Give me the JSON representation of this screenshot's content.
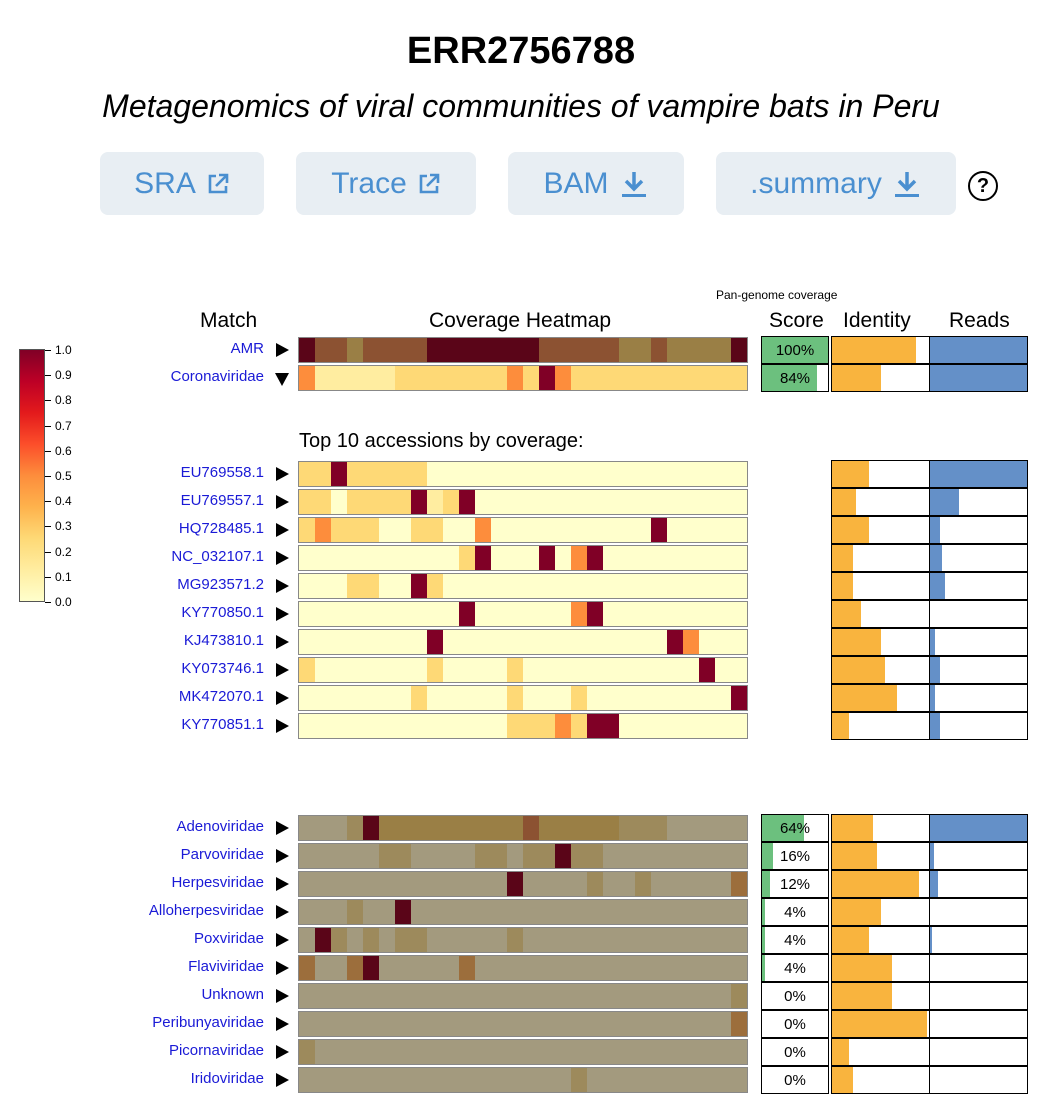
{
  "header": {
    "title": "ERR2756788",
    "subtitle": "Metagenomics of viral communities of vampire bats in Peru"
  },
  "buttons": [
    {
      "label": "SRA",
      "icon": "external-link-icon"
    },
    {
      "label": "Trace",
      "icon": "external-link-icon"
    },
    {
      "label": "BAM",
      "icon": "download-icon"
    },
    {
      "label": ".summary",
      "icon": "download-icon"
    }
  ],
  "help_icon": "?",
  "columns": {
    "match": "Match",
    "coverage_heatmap": "Coverage Heatmap",
    "pan_genome": "Pan-genome coverage",
    "score": "Score",
    "identity": "Identity",
    "reads": "Reads"
  },
  "colorbar": {
    "ticks": [
      "1.0",
      "0.9",
      "0.8",
      "0.7",
      "0.6",
      "0.5",
      "0.4",
      "0.3",
      "0.2",
      "0.1",
      "0.0"
    ],
    "colors": [
      "#800026",
      "#bd0026",
      "#e31a1c",
      "#fc4e2a",
      "#fd8d3c",
      "#feb24c",
      "#fed976",
      "#ffeda0",
      "#ffffcc"
    ]
  },
  "top10_label": "Top 10 accessions by coverage:",
  "colors": {
    "ramp": [
      "#ffffcc",
      "#ffeda0",
      "#fed976",
      "#feb24c",
      "#fd8d3c",
      "#fc4e2a",
      "#e31a1c",
      "#bd0026",
      "#800026"
    ],
    "muted": [
      "#a39a7e",
      "#9d8a5c",
      "#9a7f45",
      "#9c6e3c",
      "#8c5232",
      "#6b1e22",
      "#5a0518"
    ],
    "score_fill": "#6cc07e",
    "identity_fill": "#f9b43e",
    "reads_fill": "#6490c8",
    "link": "#1a1ad6",
    "button_bg": "#e8eef3",
    "button_text": "#4a8fd0"
  },
  "matches": [
    {
      "name": "AMR",
      "expanded": false,
      "palette": "muted",
      "score": "100%",
      "score_frac": 1.0,
      "identity_frac": 0.87,
      "reads_frac": 1.0,
      "cells": [
        6,
        4,
        4,
        2,
        4,
        4,
        4,
        4,
        6,
        6,
        6,
        6,
        6,
        6,
        6,
        4,
        4,
        4,
        4,
        4,
        2,
        2,
        4,
        2,
        2,
        2,
        2,
        6
      ]
    },
    {
      "name": "Coronaviridae",
      "expanded": true,
      "palette": "ramp",
      "score": "84%",
      "score_frac": 0.84,
      "identity_frac": 0.5,
      "reads_frac": 1.0,
      "cells": [
        4,
        1,
        1,
        1,
        1,
        1,
        2,
        2,
        2,
        2,
        2,
        2,
        2,
        4,
        2,
        8,
        4,
        2,
        2,
        2,
        2,
        2,
        2,
        2,
        2,
        2,
        2,
        2
      ]
    }
  ],
  "accessions": [
    {
      "name": "EU769558.1",
      "identity_frac": 0.38,
      "reads_frac": 1.0,
      "cells": [
        2,
        2,
        8,
        2,
        2,
        2,
        2,
        2,
        0,
        0,
        0,
        0,
        0,
        0,
        0,
        0,
        0,
        0,
        0,
        0,
        0,
        0,
        0,
        0,
        0,
        0,
        0,
        0
      ]
    },
    {
      "name": "EU769557.1",
      "identity_frac": 0.25,
      "reads_frac": 0.3,
      "cells": [
        2,
        2,
        0,
        2,
        2,
        2,
        2,
        8,
        1,
        2,
        8,
        0,
        0,
        0,
        0,
        0,
        0,
        0,
        0,
        0,
        0,
        0,
        0,
        0,
        0,
        0,
        0,
        0
      ]
    },
    {
      "name": "HQ728485.1",
      "identity_frac": 0.38,
      "reads_frac": 0.1,
      "cells": [
        2,
        4,
        2,
        2,
        2,
        0,
        0,
        2,
        2,
        0,
        0,
        4,
        0,
        0,
        0,
        0,
        0,
        0,
        0,
        0,
        0,
        0,
        8,
        0,
        0,
        0,
        0,
        0
      ]
    },
    {
      "name": "NC_032107.1",
      "identity_frac": 0.22,
      "reads_frac": 0.12,
      "cells": [
        0,
        0,
        0,
        0,
        0,
        0,
        0,
        0,
        0,
        0,
        2,
        8,
        0,
        0,
        0,
        8,
        0,
        4,
        8,
        0,
        0,
        0,
        0,
        0,
        0,
        0,
        0,
        0
      ]
    },
    {
      "name": "MG923571.2",
      "identity_frac": 0.22,
      "reads_frac": 0.15,
      "cells": [
        0,
        0,
        0,
        2,
        2,
        0,
        0,
        8,
        2,
        0,
        0,
        0,
        0,
        0,
        0,
        0,
        0,
        0,
        0,
        0,
        0,
        0,
        0,
        0,
        0,
        0,
        0,
        0
      ]
    },
    {
      "name": "KY770850.1",
      "identity_frac": 0.3,
      "reads_frac": 0.0,
      "cells": [
        0,
        0,
        0,
        0,
        0,
        0,
        0,
        0,
        0,
        0,
        8,
        0,
        0,
        0,
        0,
        0,
        0,
        4,
        8,
        0,
        0,
        0,
        0,
        0,
        0,
        0,
        0,
        0
      ]
    },
    {
      "name": "KJ473810.1",
      "identity_frac": 0.5,
      "reads_frac": 0.05,
      "cells": [
        0,
        0,
        0,
        0,
        0,
        0,
        0,
        0,
        8,
        0,
        0,
        0,
        0,
        0,
        0,
        0,
        0,
        0,
        0,
        0,
        0,
        0,
        0,
        8,
        4,
        0,
        0,
        0
      ]
    },
    {
      "name": "KY073746.1",
      "identity_frac": 0.55,
      "reads_frac": 0.1,
      "cells": [
        2,
        0,
        0,
        0,
        0,
        0,
        0,
        0,
        2,
        0,
        0,
        0,
        0,
        2,
        0,
        0,
        0,
        0,
        0,
        0,
        0,
        0,
        0,
        0,
        0,
        8,
        0,
        0
      ]
    },
    {
      "name": "MK472070.1",
      "identity_frac": 0.67,
      "reads_frac": 0.05,
      "cells": [
        0,
        0,
        0,
        0,
        0,
        0,
        0,
        2,
        0,
        0,
        0,
        0,
        0,
        2,
        0,
        0,
        0,
        2,
        0,
        0,
        0,
        0,
        0,
        0,
        0,
        0,
        0,
        8
      ]
    },
    {
      "name": "KY770851.1",
      "identity_frac": 0.18,
      "reads_frac": 0.1,
      "cells": [
        0,
        0,
        0,
        0,
        0,
        0,
        0,
        0,
        0,
        0,
        0,
        0,
        0,
        2,
        2,
        2,
        4,
        2,
        8,
        8,
        0,
        0,
        0,
        0,
        0,
        0,
        0,
        0
      ]
    }
  ],
  "families": [
    {
      "name": "Adenoviridae",
      "score": "64%",
      "score_frac": 0.64,
      "identity_frac": 0.42,
      "reads_frac": 1.0,
      "cells": [
        0,
        0,
        0,
        1,
        6,
        2,
        2,
        2,
        2,
        2,
        2,
        2,
        2,
        2,
        4,
        2,
        2,
        2,
        2,
        2,
        1,
        1,
        1,
        0,
        0,
        0,
        0,
        0
      ]
    },
    {
      "name": "Parvoviridae",
      "score": "16%",
      "score_frac": 0.16,
      "identity_frac": 0.46,
      "reads_frac": 0.04,
      "cells": [
        0,
        0,
        0,
        0,
        0,
        1,
        1,
        0,
        0,
        0,
        0,
        1,
        1,
        0,
        1,
        1,
        6,
        1,
        1,
        0,
        0,
        0,
        0,
        0,
        0,
        0,
        0,
        0
      ]
    },
    {
      "name": "Herpesviridae",
      "score": "12%",
      "score_frac": 0.12,
      "identity_frac": 0.9,
      "reads_frac": 0.08,
      "cells": [
        0,
        0,
        0,
        0,
        0,
        0,
        0,
        0,
        0,
        0,
        0,
        0,
        0,
        6,
        0,
        0,
        0,
        0,
        1,
        0,
        0,
        1,
        0,
        0,
        0,
        0,
        0,
        3
      ]
    },
    {
      "name": "Alloherpesviridae",
      "score": "4%",
      "score_frac": 0.04,
      "identity_frac": 0.5,
      "reads_frac": 0.0,
      "cells": [
        0,
        0,
        0,
        1,
        0,
        0,
        6,
        0,
        0,
        0,
        0,
        0,
        0,
        0,
        0,
        0,
        0,
        0,
        0,
        0,
        0,
        0,
        0,
        0,
        0,
        0,
        0,
        0
      ]
    },
    {
      "name": "Poxviridae",
      "score": "4%",
      "score_frac": 0.04,
      "identity_frac": 0.38,
      "reads_frac": 0.02,
      "cells": [
        0,
        6,
        1,
        0,
        1,
        0,
        1,
        1,
        0,
        0,
        0,
        0,
        0,
        1,
        0,
        0,
        0,
        0,
        0,
        0,
        0,
        0,
        0,
        0,
        0,
        0,
        0,
        0
      ]
    },
    {
      "name": "Flaviviridae",
      "score": "4%",
      "score_frac": 0.04,
      "identity_frac": 0.62,
      "reads_frac": 0.0,
      "cells": [
        3,
        0,
        0,
        3,
        6,
        0,
        0,
        0,
        0,
        0,
        3,
        0,
        0,
        0,
        0,
        0,
        0,
        0,
        0,
        0,
        0,
        0,
        0,
        0,
        0,
        0,
        0,
        0
      ]
    },
    {
      "name": "Unknown",
      "score": "0%",
      "score_frac": 0.0,
      "identity_frac": 0.62,
      "reads_frac": 0.0,
      "cells": [
        0,
        0,
        0,
        0,
        0,
        0,
        0,
        0,
        0,
        0,
        0,
        0,
        0,
        0,
        0,
        0,
        0,
        0,
        0,
        0,
        0,
        0,
        0,
        0,
        0,
        0,
        0,
        1
      ]
    },
    {
      "name": "Peribunyaviridae",
      "score": "0%",
      "score_frac": 0.0,
      "identity_frac": 0.98,
      "reads_frac": 0.0,
      "cells": [
        0,
        0,
        0,
        0,
        0,
        0,
        0,
        0,
        0,
        0,
        0,
        0,
        0,
        0,
        0,
        0,
        0,
        0,
        0,
        0,
        0,
        0,
        0,
        0,
        0,
        0,
        0,
        3
      ]
    },
    {
      "name": "Picornaviridae",
      "score": "0%",
      "score_frac": 0.0,
      "identity_frac": 0.18,
      "reads_frac": 0.0,
      "cells": [
        1,
        0,
        0,
        0,
        0,
        0,
        0,
        0,
        0,
        0,
        0,
        0,
        0,
        0,
        0,
        0,
        0,
        0,
        0,
        0,
        0,
        0,
        0,
        0,
        0,
        0,
        0,
        0
      ]
    },
    {
      "name": "Iridoviridae",
      "score": "0%",
      "score_frac": 0.0,
      "identity_frac": 0.22,
      "reads_frac": 0.0,
      "cells": [
        0,
        0,
        0,
        0,
        0,
        0,
        0,
        0,
        0,
        0,
        0,
        0,
        0,
        0,
        0,
        0,
        0,
        1,
        0,
        0,
        0,
        0,
        0,
        0,
        0,
        0,
        0,
        0
      ]
    }
  ]
}
